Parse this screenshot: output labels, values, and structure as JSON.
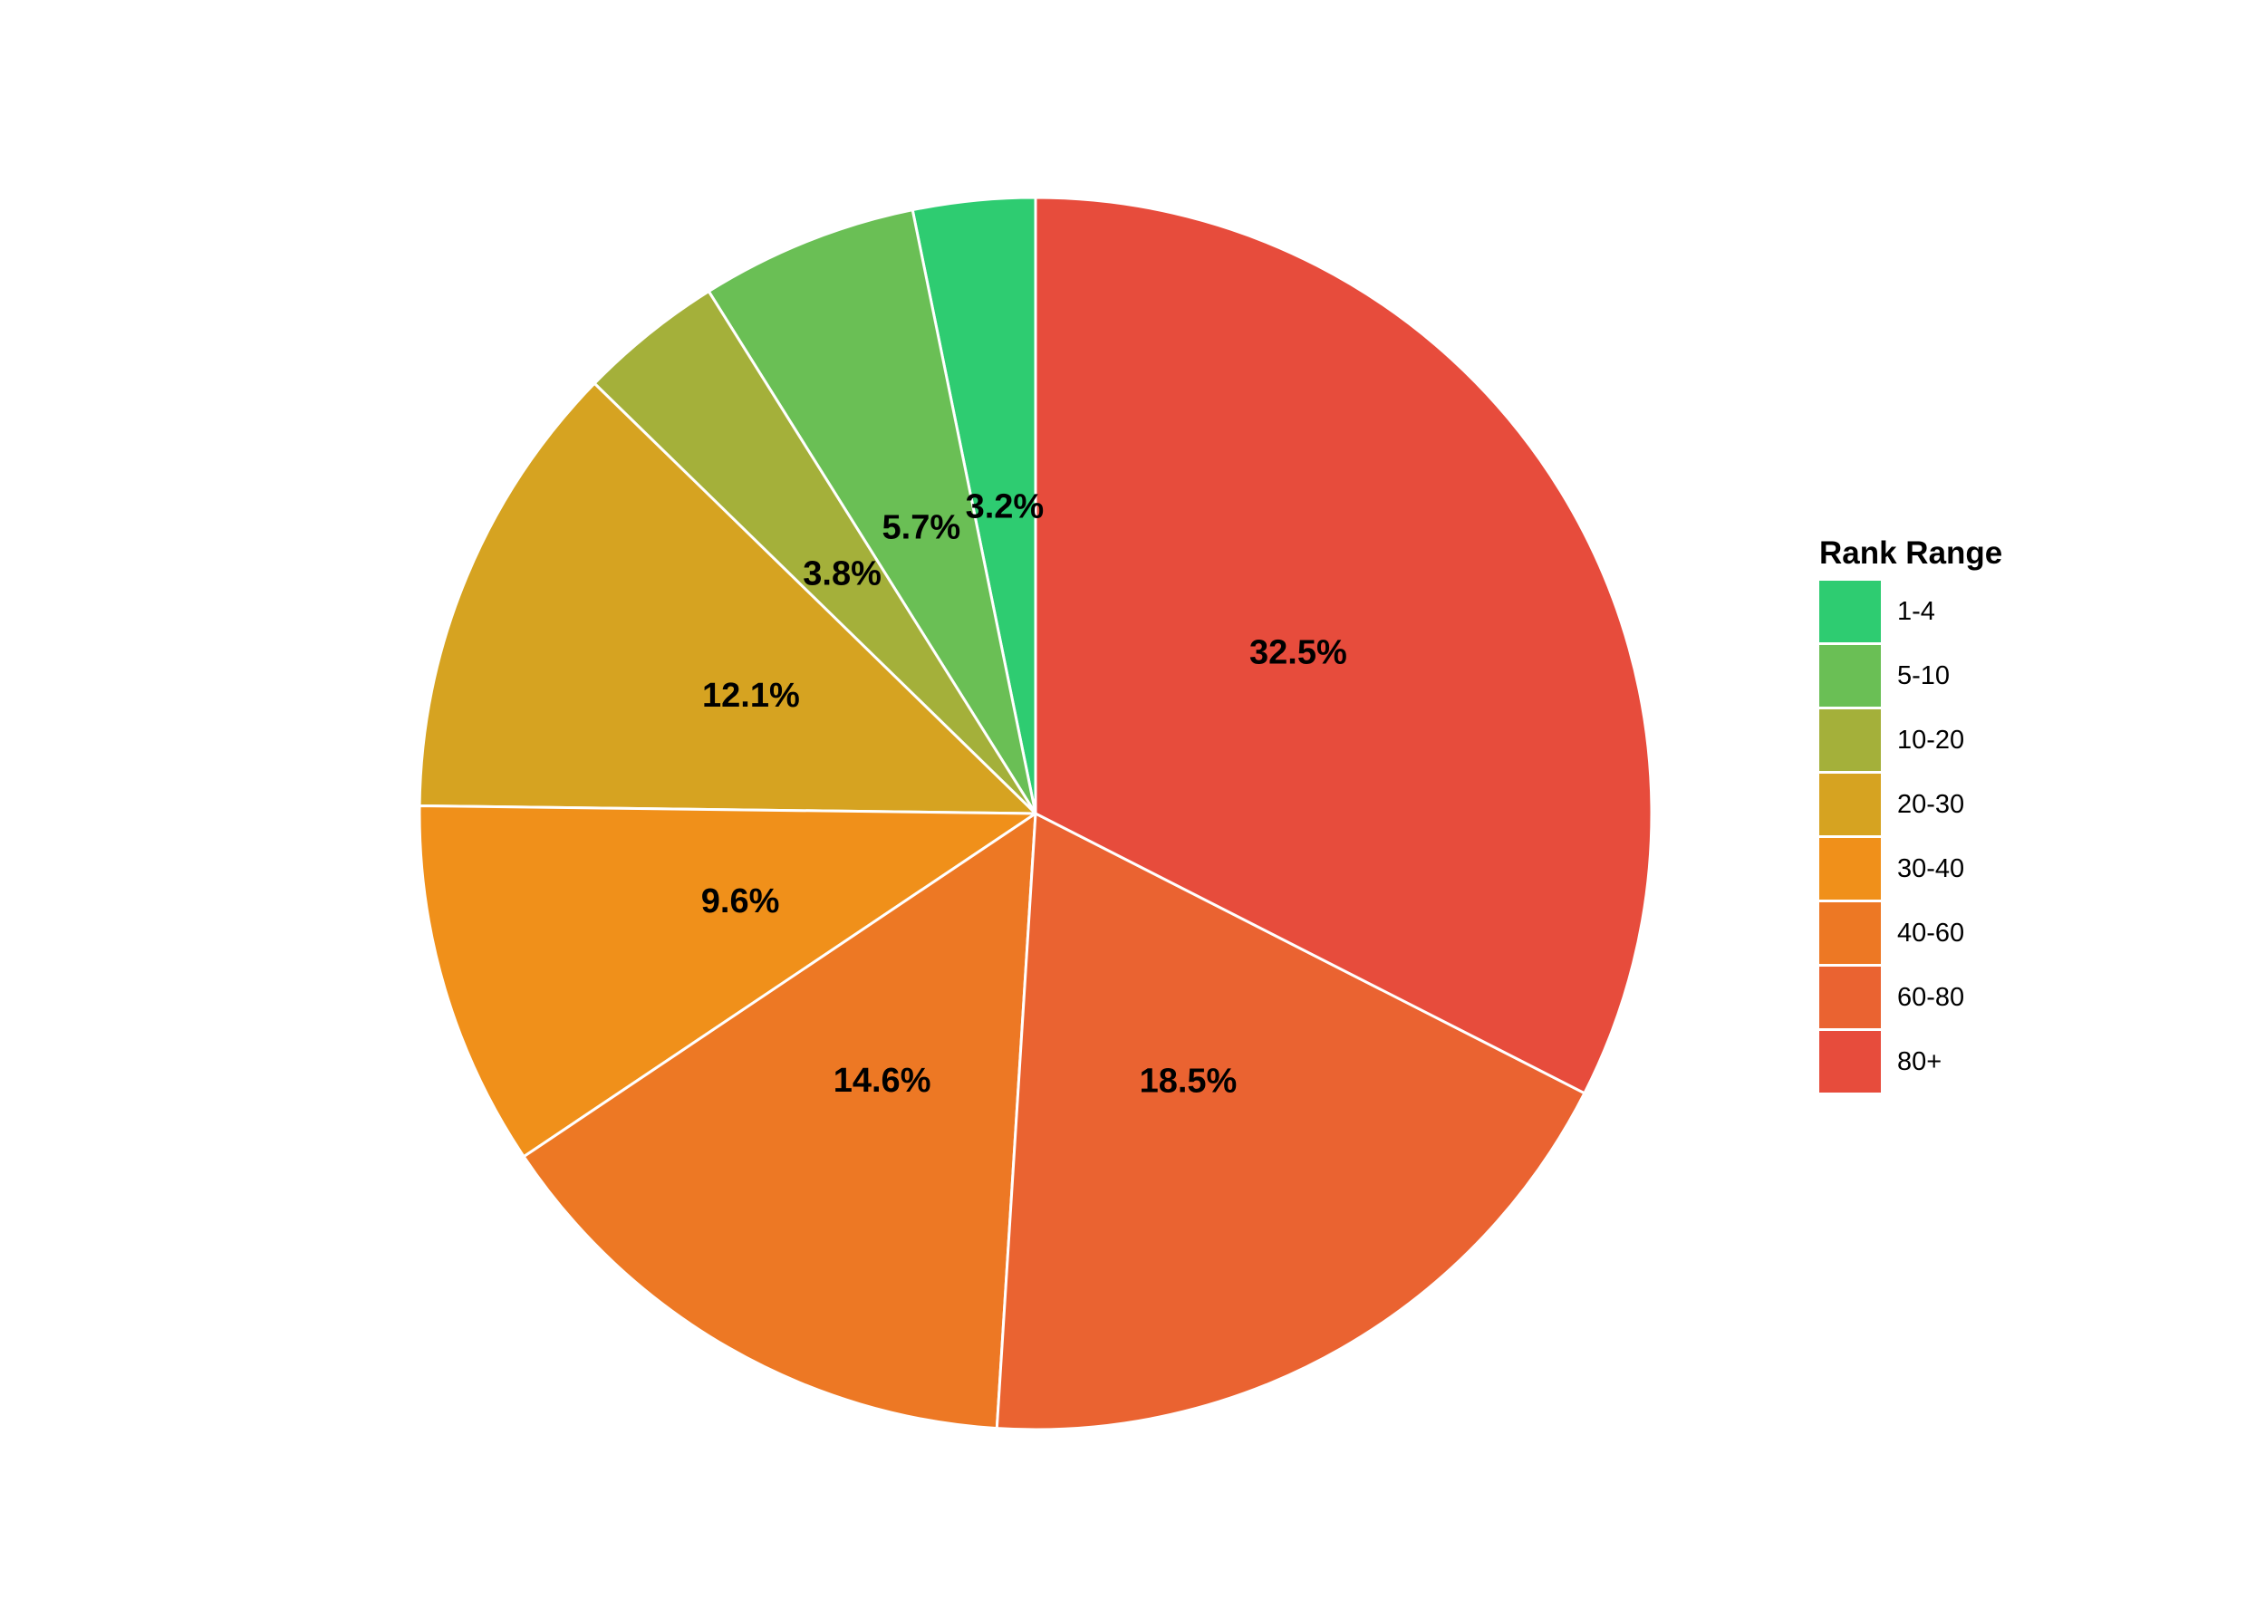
{
  "chart_data": {
    "type": "pie",
    "categories": [
      "1-4",
      "5-10",
      "10-20",
      "20-30",
      "30-40",
      "40-60",
      "60-80",
      "80+"
    ],
    "values": [
      3.2,
      5.7,
      3.8,
      12.1,
      9.6,
      14.6,
      18.5,
      32.5
    ],
    "labels": [
      "3.2%",
      "5.7%",
      "3.8%",
      "12.1%",
      "9.6%",
      "14.6%",
      "18.5%",
      "32.5%"
    ],
    "colors": [
      "#2ecc71",
      "#6abf55",
      "#a4b03a",
      "#d6a321",
      "#f0901a",
      "#ed7824",
      "#ea6331",
      "#e74c3c"
    ],
    "start": "12 o'clock",
    "direction": "counterclockwise from 1-4",
    "legend": {
      "title": "Rank Range",
      "placement": "right"
    }
  }
}
